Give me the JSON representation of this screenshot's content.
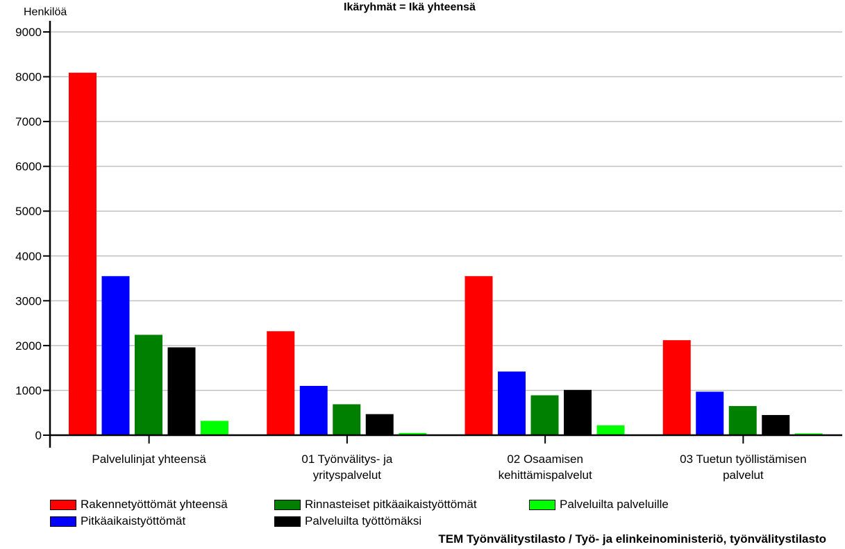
{
  "chart_data": {
    "type": "bar",
    "title": "Ikäryhmät = Ikä yhteensä",
    "ylabel": "Henkilöä",
    "xlabel": "",
    "ylim": [
      0,
      9000
    ],
    "yticks": [
      0,
      1000,
      2000,
      3000,
      4000,
      5000,
      6000,
      7000,
      8000,
      9000
    ],
    "grid": true,
    "legend_position": "bottom",
    "categories": [
      [
        "Palvelulinjat yhteensä"
      ],
      [
        "01 Työnvälitys- ja",
        "yrityspalvelut"
      ],
      [
        "02 Osaamisen",
        "kehittämispalvelut"
      ],
      [
        "03 Tuetun työllistämisen",
        "palvelut"
      ]
    ],
    "series": [
      {
        "name": "Rakennetyöttömät yhteensä",
        "color": "#ff0000",
        "values": [
          8090,
          2320,
          3550,
          2120
        ]
      },
      {
        "name": "Pitkäaikaistyöttömät",
        "color": "#0000ff",
        "values": [
          3550,
          1100,
          1420,
          970
        ]
      },
      {
        "name": "Rinnasteiset pitkäaikaistyöttömät",
        "color": "#008000",
        "values": [
          2240,
          690,
          890,
          650
        ]
      },
      {
        "name": "Palveluilta työttömäksi",
        "color": "#000000",
        "values": [
          1960,
          470,
          1010,
          450
        ]
      },
      {
        "name": "Palveluilta palveluille",
        "color": "#00ff00",
        "values": [
          320,
          50,
          220,
          40
        ]
      }
    ],
    "source": "TEM Työnvälitystilasto / Työ- ja elinkeinoministeriö, työnvälitystilasto"
  }
}
